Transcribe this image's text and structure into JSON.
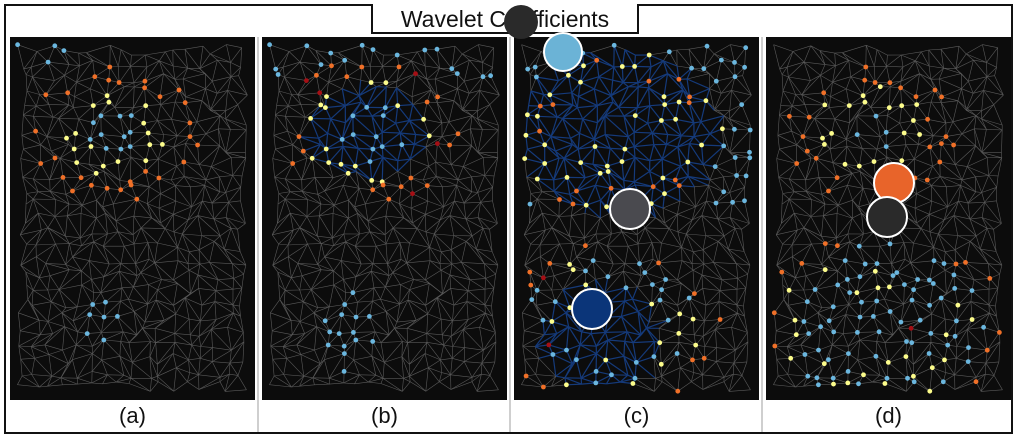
{
  "figure": {
    "title": "Wavelet Coefficients",
    "panels": [
      {
        "caption": "(a)",
        "variant": "a"
      },
      {
        "caption": "(b)",
        "variant": "b"
      },
      {
        "caption": "(c)",
        "variant": "c"
      },
      {
        "caption": "(d)",
        "variant": "d"
      }
    ]
  },
  "colors": {
    "background": "#0c0c0c",
    "edge": "#5a5a5a",
    "edge_dark_blue": "#153a7a",
    "node_light_blue": "#6bb7df",
    "node_yellow": "#fdfd8c",
    "node_orange": "#f07028",
    "node_red": "#a50f15",
    "marker_black": "#2a2a2a",
    "marker_gray": "#4a4a4f",
    "marker_light_blue": "#6bb3d6",
    "marker_orange": "#e8642a",
    "marker_navy": "#0b3579"
  }
}
